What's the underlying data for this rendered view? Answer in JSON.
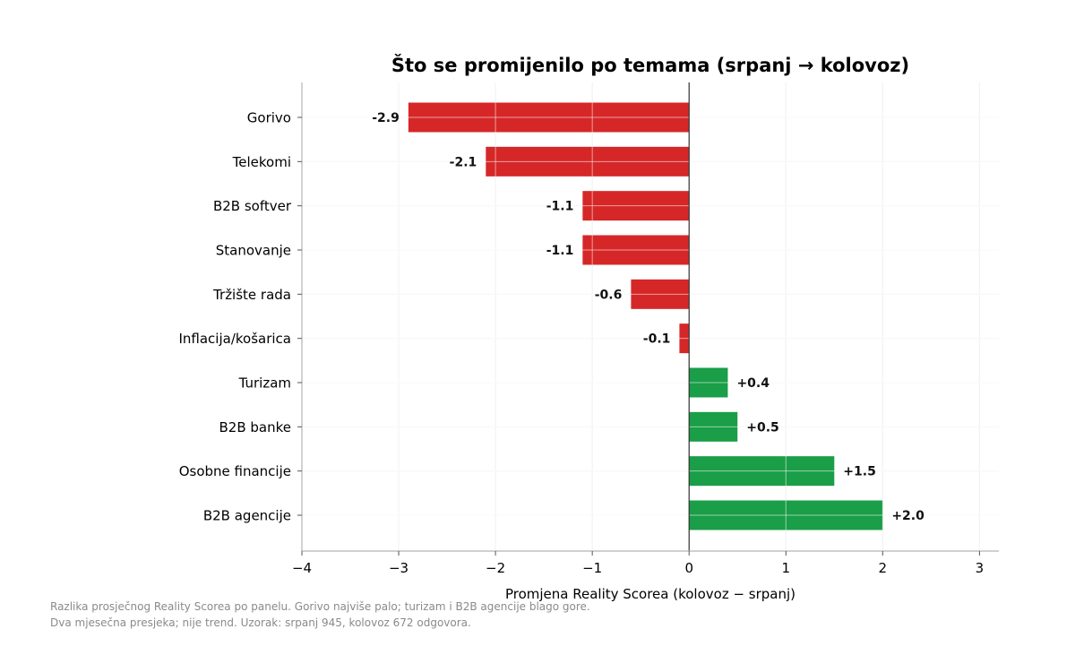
{
  "chart_data": {
    "type": "bar",
    "orientation": "horizontal",
    "title": "Što se promijenilo po temama (srpanj → kolovoz)",
    "xlabel": "Promjena Reality Scorea (kolovoz − srpanj)",
    "ylabel": "",
    "xlim": [
      -4,
      3.2
    ],
    "xticks": [
      -4,
      -3,
      -2,
      -1,
      0,
      1,
      2,
      3
    ],
    "xtick_labels": [
      "−4",
      "−3",
      "−2",
      "−1",
      "0",
      "1",
      "2",
      "3"
    ],
    "grid": true,
    "categories": [
      "Gorivo",
      "Telekomi",
      "B2B softver",
      "Stanovanje",
      "Tržište rada",
      "Inflacija/košarica",
      "Turizam",
      "B2B banke",
      "Osobne financije",
      "B2B agencije"
    ],
    "values": [
      -2.9,
      -2.1,
      -1.1,
      -1.1,
      -0.6,
      -0.1,
      0.4,
      0.5,
      1.5,
      2.0
    ],
    "data_labels": [
      "-2.9",
      "-2.1",
      "-1.1",
      "-1.1",
      "-0.6",
      "-0.1",
      "+0.4",
      "+0.5",
      "+1.5",
      "+2.0"
    ],
    "colors": {
      "negative": "#d62728",
      "positive": "#1a9e47"
    }
  },
  "footnotes": [
    "Razlika prosječnog Reality Scorea po panelu. Gorivo najviše palo; turizam i B2B agencije blago gore.",
    "Dva mjesečna presjeka; nije trend. Uzorak: srpanj 945, kolovoz 672 odgovora."
  ]
}
